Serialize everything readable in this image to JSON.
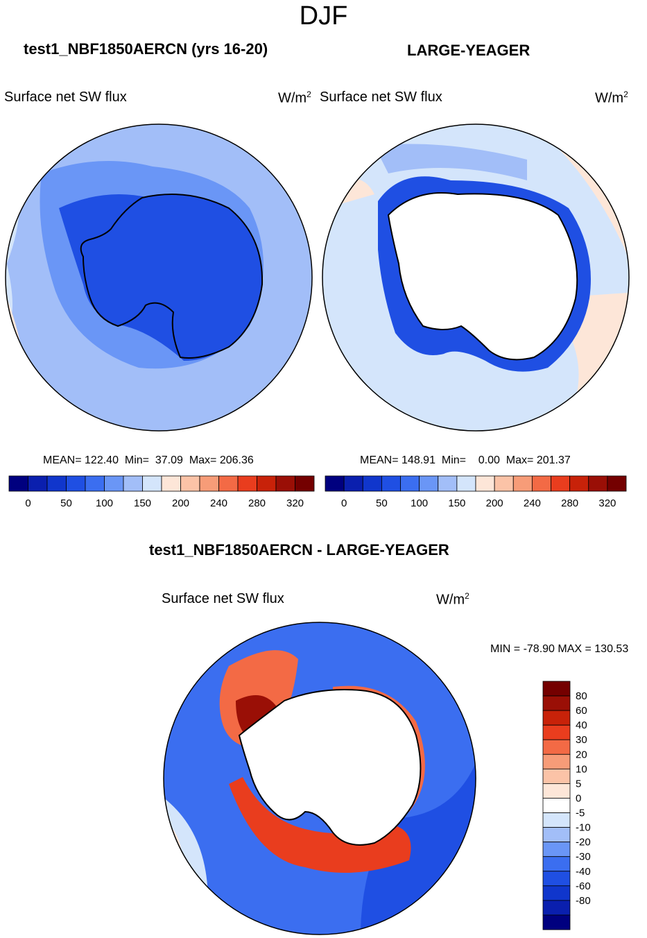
{
  "page": {
    "title": "DJF",
    "units_base": "W/m",
    "units_exp": "2"
  },
  "panels": {
    "left": {
      "title": "test1_NBF1850AERCN (yrs 16-20)",
      "variable": "Surface net SW flux",
      "mean_label": "MEAN=",
      "mean": "122.40",
      "min_label": "Min=",
      "min": "37.09",
      "max_label": "Max=",
      "max": "206.36"
    },
    "right": {
      "title": "LARGE-YEAGER",
      "variable": "Surface net SW flux",
      "mean_label": "MEAN=",
      "mean": "148.91",
      "min_label": "Min=",
      "min": "0.00",
      "max_label": "Max=",
      "max": "201.37"
    },
    "diff": {
      "title": "test1_NBF1850AERCN - LARGE-YEAGER",
      "variable": "Surface net SW flux",
      "minmax": "MIN = -78.90 MAX = 130.53"
    }
  },
  "colors": {
    "seq": [
      "#00007f",
      "#0a1fae",
      "#1036cc",
      "#1f4fe3",
      "#3b6ef0",
      "#6a96f6",
      "#a2bef8",
      "#d4e5fb",
      "#fde6d8",
      "#fbc3a7",
      "#f79c78",
      "#f36a45",
      "#e93d1e",
      "#c82209",
      "#9a0f06",
      "#740000"
    ],
    "diff": [
      "#00007f",
      "#0a1fae",
      "#1036cc",
      "#1f4fe3",
      "#3b6ef0",
      "#6a96f6",
      "#a2bef8",
      "#d4e5fb",
      "#ffffff",
      "#fde6d8",
      "#fbc3a7",
      "#f79c78",
      "#f36a45",
      "#e93d1e",
      "#c82209",
      "#9a0f06",
      "#740000"
    ]
  },
  "chart_data": [
    {
      "type": "heatmap",
      "map": "south-polar-stereographic",
      "title": "test1_NBF1850AERCN (yrs 16-20)",
      "variable": "Surface net SW flux",
      "units": "W/m2",
      "mean": 122.4,
      "min": 37.09,
      "max": 206.36,
      "colorbar_levels": [
        0,
        25,
        50,
        75,
        100,
        125,
        150,
        175,
        200,
        220,
        240,
        260,
        280,
        300,
        320
      ],
      "colorbar_tick_labels": [
        "0",
        "50",
        "100",
        "150",
        "200",
        "240",
        "280",
        "320"
      ]
    },
    {
      "type": "heatmap",
      "map": "south-polar-stereographic",
      "title": "LARGE-YEAGER",
      "variable": "Surface net SW flux",
      "units": "W/m2",
      "mean": 148.91,
      "min": 0.0,
      "max": 201.37,
      "colorbar_levels": [
        0,
        25,
        50,
        75,
        100,
        125,
        150,
        175,
        200,
        220,
        240,
        260,
        280,
        300,
        320
      ],
      "colorbar_tick_labels": [
        "0",
        "50",
        "100",
        "150",
        "200",
        "240",
        "280",
        "320"
      ]
    },
    {
      "type": "heatmap",
      "map": "south-polar-stereographic",
      "title": "test1_NBF1850AERCN - LARGE-YEAGER",
      "variable": "Surface net SW flux",
      "units": "W/m2",
      "min": -78.9,
      "max": 130.53,
      "colorbar_tick_labels": [
        "80",
        "60",
        "40",
        "30",
        "20",
        "10",
        "5",
        "0",
        "-5",
        "-10",
        "-20",
        "-30",
        "-40",
        "-60",
        "-80"
      ]
    }
  ]
}
